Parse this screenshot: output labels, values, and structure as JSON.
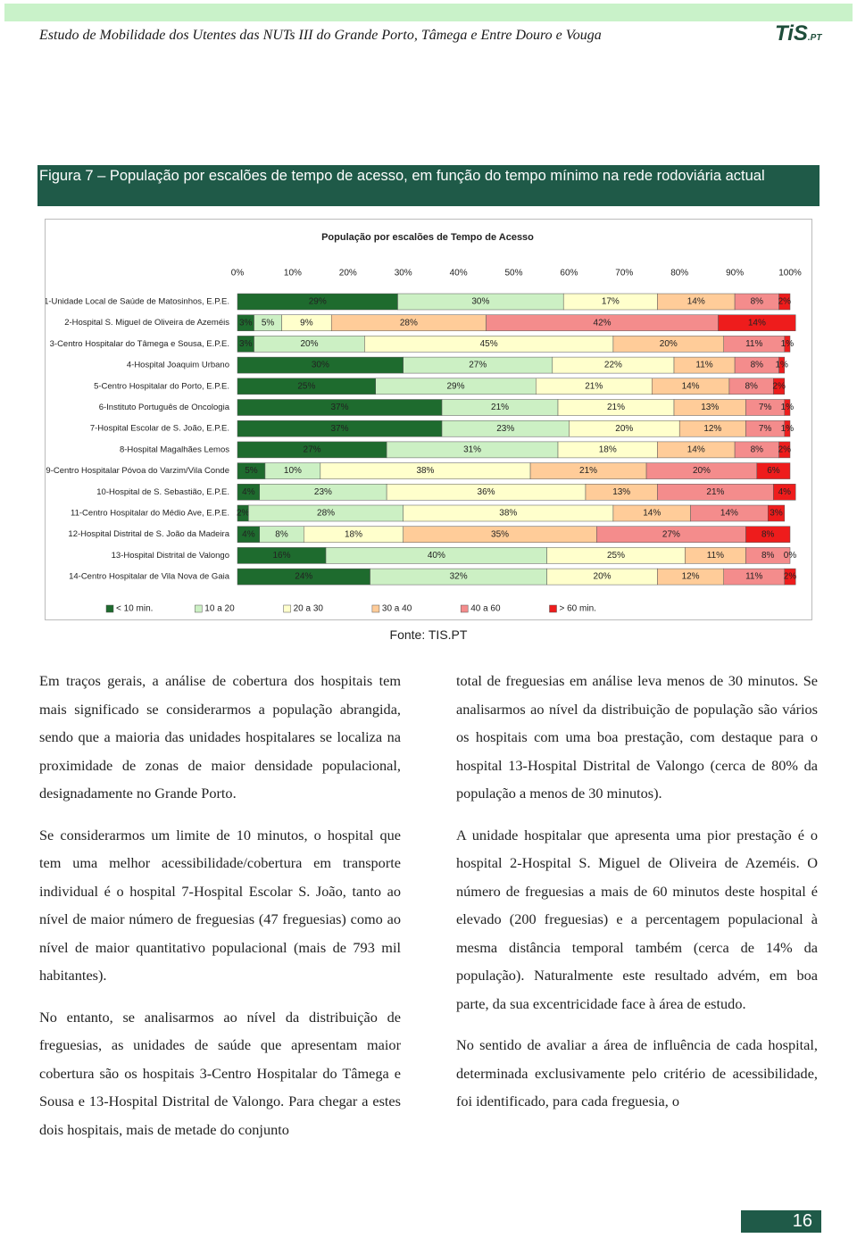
{
  "header": {
    "title": "Estudo de Mobilidade dos Utentes das NUTs III do Grande Porto, Tâmega e Entre Douro e Vouga",
    "logo": "TiS",
    "logo_suffix": ".PT"
  },
  "caption": "Figura 7 – População por escalões de tempo de acesso, em função do tempo mínimo na rede rodoviária actual",
  "chart_data": {
    "type": "stacked-bar-horizontal",
    "title": "População por escalões de Tempo de Acesso",
    "categories": [
      "1-Unidade Local de Saúde de Matosinhos, E.P.E.",
      "2-Hospital S. Miguel de Oliveira de Azeméis",
      "3-Centro Hospitalar do Tâmega e Sousa, E.P.E.",
      "4-Hospital Joaquim Urbano",
      "5-Centro Hospitalar do Porto, E.P.E.",
      "6-Instituto Português de Oncologia",
      "7-Hospital Escolar de S. João, E.P.E.",
      "8-Hospital Magalhães Lemos",
      "9-Centro Hospitalar Póvoa do Varzim/Vila Conde",
      "10-Hospital de S. Sebastião, E.P.E.",
      "11-Centro Hospitalar do Médio Ave, E.P.E.",
      "12-Hospital Distrital de S. João da Madeira",
      "13-Hospital Distrital de Valongo",
      "14-Centro Hospitalar de Vila Nova de Gaia"
    ],
    "xlim": [
      0,
      100
    ],
    "xticks": [
      {
        "value": 0,
        "label": "0%"
      },
      {
        "value": 10,
        "label": "10%"
      },
      {
        "value": 20,
        "label": "20%"
      },
      {
        "value": 30,
        "label": "30%"
      },
      {
        "value": 40,
        "label": "40%"
      },
      {
        "value": 50,
        "label": "50%"
      },
      {
        "value": 60,
        "label": "60%"
      },
      {
        "value": 70,
        "label": "70%"
      },
      {
        "value": 80,
        "label": "80%"
      },
      {
        "value": 90,
        "label": "90%"
      },
      {
        "value": 100,
        "label": "100%"
      }
    ],
    "grid": false,
    "legend": "bottom",
    "series": [
      {
        "name": "< 10 min.",
        "color": "#1e6b2e",
        "text_color": "#ffffff",
        "values": [
          29,
          3,
          3,
          30,
          25,
          37,
          37,
          27,
          5,
          4,
          2,
          4,
          16,
          24
        ],
        "value_labels": [
          "29%",
          "3%",
          "3%",
          "30%",
          "25%",
          "37%",
          "37%",
          "27%",
          "5%",
          "4%",
          "2%",
          "4%",
          "16%",
          "24%"
        ]
      },
      {
        "name": "10 a 20",
        "color": "#ccf0c4",
        "text_color": "#222222",
        "values": [
          30,
          5,
          20,
          27,
          29,
          21,
          23,
          31,
          10,
          23,
          28,
          8,
          40,
          32
        ],
        "value_labels": [
          "30%",
          "5%",
          "20%",
          "27%",
          "29%",
          "21%",
          "23%",
          "31%",
          "10%",
          "23%",
          "28%",
          "8%",
          "40%",
          "32%"
        ]
      },
      {
        "name": "20 a 30",
        "color": "#ffffcc",
        "text_color": "#222222",
        "values": [
          17,
          9,
          45,
          22,
          21,
          21,
          20,
          18,
          38,
          36,
          38,
          18,
          25,
          20
        ],
        "value_labels": [
          "17%",
          "9%",
          "45%",
          "22%",
          "21%",
          "21%",
          "20%",
          "18%",
          "38%",
          "36%",
          "38%",
          "18%",
          "25%",
          "20%"
        ]
      },
      {
        "name": "30 a 40",
        "color": "#ffcc99",
        "text_color": "#222222",
        "values": [
          14,
          28,
          20,
          11,
          14,
          13,
          12,
          14,
          21,
          13,
          14,
          35,
          11,
          12
        ],
        "value_labels": [
          "14%",
          "28%",
          "20%",
          "11%",
          "14%",
          "13%",
          "12%",
          "14%",
          "21%",
          "13%",
          "14%",
          "35%",
          "11%",
          "12%"
        ]
      },
      {
        "name": "40 a 60",
        "color": "#f48c8c",
        "text_color": "#222222",
        "values": [
          8,
          42,
          11,
          8,
          8,
          7,
          7,
          8,
          20,
          21,
          14,
          27,
          8,
          11
        ],
        "value_labels": [
          "8%",
          "42%",
          "11%",
          "8%",
          "8%",
          "7%",
          "7%",
          "8%",
          "20%",
          "21%",
          "14%",
          "27%",
          "8%",
          "11%"
        ]
      },
      {
        "name": "> 60 min.",
        "color": "#ee1c1c",
        "text_color": "#ffffff",
        "values": [
          2,
          14,
          1,
          1,
          2,
          1,
          1,
          2,
          6,
          4,
          3,
          8,
          0,
          2
        ],
        "value_labels": [
          "2%",
          "14%",
          "1%",
          "1%",
          "2%",
          "1%",
          "1%",
          "2%",
          "6%",
          "4%",
          "3%",
          "8%",
          "0%",
          "2%"
        ]
      }
    ]
  },
  "source": "Fonte: TIS.PT",
  "body": {
    "left": [
      "Em traços gerais, a análise de cobertura dos hospitais tem mais significado se considerarmos a população abrangida, sendo que a maioria das unidades hospitalares se localiza na proximidade de zonas de maior densidade populacional, designadamente no Grande Porto.",
      "Se considerarmos um limite de 10 minutos, o hospital que tem uma melhor acessibilidade/cobertura em transporte individual é o hospital 7-Hospital Escolar S. João, tanto ao nível de maior número de freguesias (47 freguesias) como ao nível de maior quantitativo populacional (mais de 793 mil habitantes).",
      "No entanto, se analisarmos ao nível da distribuição de freguesias, as unidades de saúde que apresentam maior cobertura são os hospitais 3-Centro Hospitalar do Tâmega e Sousa e 13-Hospital Distrital de Valongo. Para chegar a estes dois hospitais, mais de metade do conjunto"
    ],
    "right": [
      "total de freguesias em análise leva menos de 30 minutos. Se analisarmos ao nível da distribuição de população são vários os hospitais com uma boa prestação, com destaque para o hospital 13-Hospital Distrital de Valongo (cerca de 80% da população a menos de 30 minutos).",
      "A unidade hospitalar que apresenta uma pior prestação é o hospital 2-Hospital S. Miguel de Oliveira de Azeméis. O número de freguesias a mais de 60 minutos deste hospital é elevado (200 freguesias) e a percentagem populacional à mesma distância temporal também (cerca de 14% da população). Naturalmente este resultado advém, em boa parte, da sua excentricidade face à área de estudo.",
      "No sentido de avaliar a área de influência de cada hospital, determinada exclusivamente pelo critério de acessibilidade, foi identificado, para cada freguesia, o"
    ]
  },
  "page_number": "16"
}
